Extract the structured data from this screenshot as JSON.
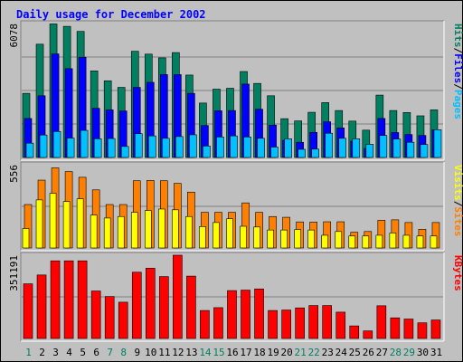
{
  "chart_data": {
    "type": "bar",
    "title": "Daily usage for December 2002",
    "categories": [
      "1",
      "2",
      "3",
      "4",
      "5",
      "6",
      "7",
      "8",
      "9",
      "10",
      "11",
      "12",
      "13",
      "14",
      "15",
      "16",
      "17",
      "18",
      "19",
      "20",
      "21",
      "22",
      "23",
      "24",
      "25",
      "26",
      "27",
      "28",
      "29",
      "30",
      "31"
    ],
    "weekend_days": [
      "1",
      "7",
      "8",
      "14",
      "15",
      "21",
      "22",
      "28",
      "29"
    ],
    "panels": [
      {
        "id": "hits",
        "max_label": "6078",
        "ylim": [
          0,
          6078
        ],
        "legend": [
          {
            "label": "Pages",
            "color": "#00c0ff"
          },
          {
            "label": "/",
            "color": "#000000"
          },
          {
            "label": "Files",
            "color": "#0000ff"
          },
          {
            "label": "/",
            "color": "#000000"
          },
          {
            "label": "Hits",
            "color": "#008060"
          }
        ],
        "series": [
          {
            "name": "Hits",
            "color": "#008060",
            "values": [
              2910,
              5140,
              6060,
              5950,
              5720,
              3930,
              3480,
              3180,
              4820,
              4690,
              4520,
              4760,
              3740,
              2470,
              3100,
              3140,
              3900,
              3360,
              2800,
              1760,
              1660,
              2050,
              2490,
              2130,
              1650,
              1240,
              2830,
              2130,
              2040,
              1890,
              2160
            ]
          },
          {
            "name": "Files",
            "color": "#0000ff",
            "values": [
              1770,
              2800,
              4700,
              4030,
              4550,
              2230,
              2160,
              2110,
              3180,
              3410,
              3760,
              3760,
              2910,
              1450,
              2120,
              2130,
              3330,
              2190,
              1470,
              780,
              690,
              1140,
              1620,
              1340,
              740,
              410,
              1770,
              1130,
              1040,
              1000,
              1260
            ]
          },
          {
            "name": "Pages",
            "color": "#00c0ff",
            "values": [
              650,
              1020,
              1180,
              880,
              1230,
              850,
              860,
              500,
              1080,
              980,
              870,
              950,
              1030,
              520,
              930,
              980,
              930,
              870,
              470,
              850,
              370,
              380,
              1100,
              870,
              850,
              600,
              1000,
              840,
              690,
              590,
              1260
            ]
          }
        ]
      },
      {
        "id": "visits",
        "max_label": "556",
        "ylim": [
          0,
          556
        ],
        "legend": [
          {
            "label": "Sites",
            "color": "#ff8000"
          },
          {
            "label": "/",
            "color": "#000000"
          },
          {
            "label": "Visits",
            "color": "#ffff00"
          }
        ],
        "series": [
          {
            "name": "Visits",
            "color": "#ff8000",
            "values": [
              290,
              453,
              535,
              510,
              472,
              388,
              290,
              290,
              449,
              451,
              449,
              431,
              373,
              238,
              238,
              238,
              301,
              238,
              210,
              205,
              174,
              173,
              175,
              175,
              105,
              110,
              185,
              188,
              170,
              125,
              170
            ]
          },
          {
            "name": "Sites",
            "color": "#ffff00",
            "values": [
              130,
              321,
              365,
              310,
              328,
              220,
              200,
              210,
              238,
              250,
              260,
              255,
              210,
              143,
              170,
              195,
              145,
              140,
              120,
              120,
              123,
              120,
              85,
              110,
              80,
              80,
              85,
              100,
              85,
              80,
              80
            ]
          }
        ]
      },
      {
        "id": "kbytes",
        "max_label": "351191",
        "ylim": [
          0,
          351191
        ],
        "legend": [
          {
            "label": "KBytes",
            "color": "#ff0000"
          }
        ],
        "series": [
          {
            "name": "KBytes",
            "color": "#ff0000",
            "values": [
              230500,
              267800,
              327500,
              327500,
              327500,
              200300,
              177000,
              153000,
              279500,
              296300,
              261000,
              351191,
              263000,
              118000,
              130000,
              202000,
              204000,
              209000,
              118000,
              120000,
              129000,
              139000,
              139000,
              111000,
              53000,
              32000,
              138000,
              87000,
              82000,
              66000,
              78000
            ]
          }
        ]
      }
    ]
  }
}
